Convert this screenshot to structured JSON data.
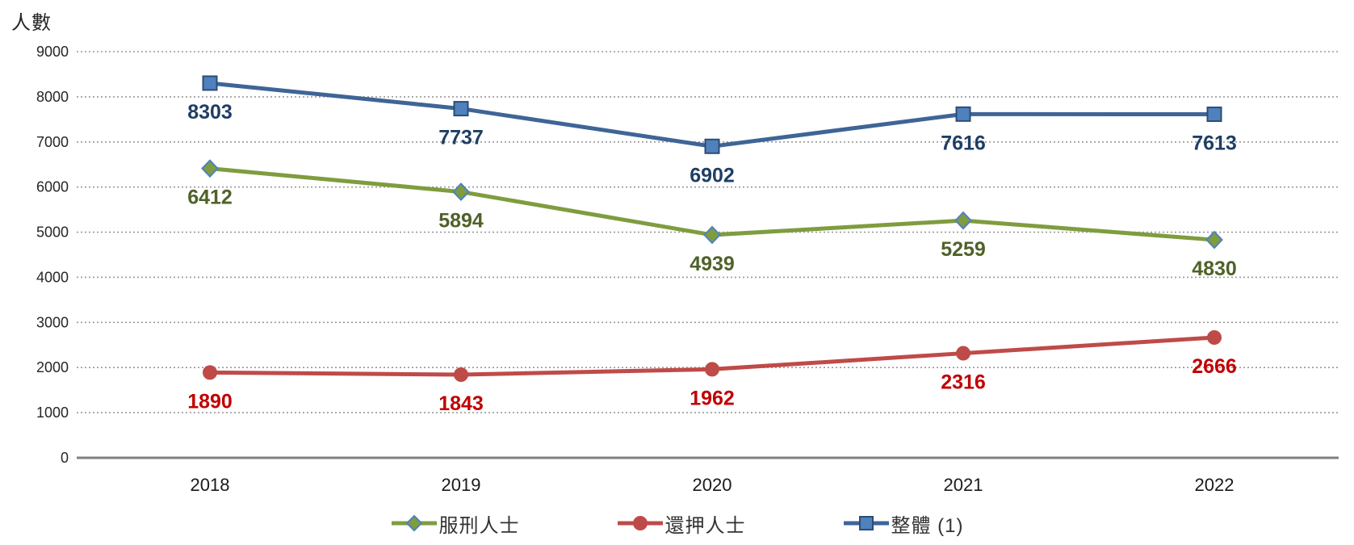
{
  "axis_title": "人數",
  "chart_data": {
    "type": "line",
    "title": "",
    "xlabel": "",
    "ylabel": "人數",
    "categories": [
      "2018",
      "2019",
      "2020",
      "2021",
      "2022"
    ],
    "series": [
      {
        "name": "服刑人士",
        "values": [
          6412,
          5894,
          4939,
          5259,
          4830
        ],
        "marker": "diamond",
        "line_color": "#7F9C3F",
        "marker_fill": "#7F9C3F",
        "marker_border": "#4F81BD",
        "label_color": "#4F6228"
      },
      {
        "name": "還押人士",
        "values": [
          1890,
          1843,
          1962,
          2316,
          2666
        ],
        "marker": "circle",
        "line_color": "#BE4B48",
        "marker_fill": "#BE4B48",
        "marker_border": "#BE4B48",
        "label_color": "#C00000"
      },
      {
        "name": "整體 (1)",
        "values": [
          8303,
          7737,
          6902,
          7616,
          7613
        ],
        "marker": "square",
        "line_color": "#3E6596",
        "marker_fill": "#4F81BD",
        "marker_border": "#2C4D75",
        "label_color": "#1F3E64"
      }
    ],
    "ylim": [
      0,
      9000
    ],
    "ytick_step": 1000,
    "yticks": [
      9000,
      8000,
      7000,
      6000,
      5000,
      4000,
      3000,
      2000,
      1000,
      0
    ],
    "grid": "horizontal-dotted",
    "legend_position": "bottom",
    "data_labels": "below-points",
    "gridline_color": "#999999",
    "axis_line_color": "#808080",
    "tick_label_color": "#262626",
    "year_label_color": "#1a1a1a"
  }
}
